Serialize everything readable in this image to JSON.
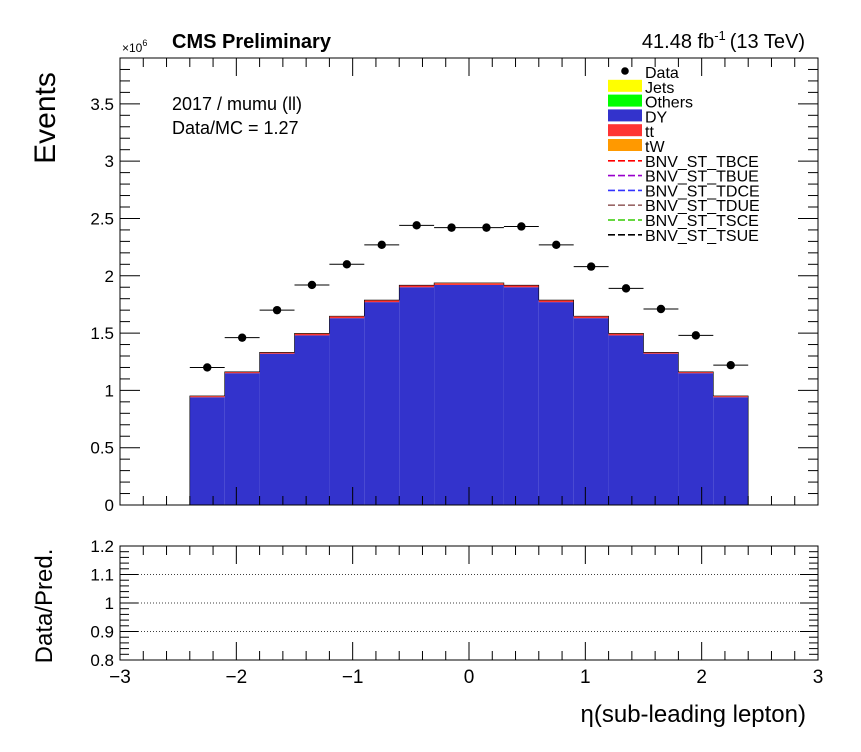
{
  "header": {
    "experiment": "CMS Preliminary",
    "lumi": "41.48 fb",
    "lumi_exp": "-1",
    "energy": "(13 TeV)",
    "scale_prefix": "×10",
    "scale_exp": "6"
  },
  "annotations": {
    "channel": "2017 / mumu (ll)",
    "ratio": "Data/MC = 1.27"
  },
  "colors": {
    "Jets": "#ffff00",
    "Others": "#00ff00",
    "DY": "#3333cc",
    "tt": "#ff3333",
    "tW": "#ff9900",
    "Data": "#000000",
    "BNV_ST_TBCE": "#ff0000",
    "BNV_ST_TBUE": "#9900cc",
    "BNV_ST_TDCE": "#3333ff",
    "BNV_ST_TDUE": "#996666",
    "BNV_ST_TSCE": "#33cc00",
    "BNV_ST_TSUE": "#000000"
  },
  "chart_data": [
    {
      "type": "bar",
      "stacked": true,
      "ylabel": "Events",
      "ylim": [
        0,
        3.9
      ],
      "y_scale_factor": "1e6",
      "xlim": [
        -3,
        3
      ],
      "yticks": [
        "0",
        "0.5",
        "1",
        "1.5",
        "2",
        "2.5",
        "3",
        "3.5"
      ],
      "bin_edges": [
        -3.0,
        -2.7,
        -2.4,
        -2.1,
        -1.8,
        -1.5,
        -1.2,
        -0.9,
        -0.6,
        -0.3,
        0.0,
        0.3,
        0.6,
        0.9,
        1.2,
        1.5,
        1.8,
        2.1,
        2.4,
        2.7,
        3.0
      ],
      "series": [
        {
          "name": "DY",
          "values": [
            0,
            0,
            0.94,
            1.15,
            1.32,
            1.48,
            1.63,
            1.77,
            1.9,
            1.92,
            1.92,
            1.9,
            1.77,
            1.63,
            1.48,
            1.32,
            1.15,
            0.94,
            0,
            0
          ]
        },
        {
          "name": "tt",
          "values": [
            0,
            0,
            0.01,
            0.01,
            0.01,
            0.015,
            0.015,
            0.015,
            0.015,
            0.015,
            0.015,
            0.015,
            0.015,
            0.015,
            0.015,
            0.01,
            0.01,
            0.01,
            0,
            0
          ]
        },
        {
          "name": "tW",
          "values": [
            0,
            0,
            0.002,
            0.002,
            0.002,
            0.003,
            0.003,
            0.003,
            0.003,
            0.003,
            0.003,
            0.003,
            0.003,
            0.003,
            0.003,
            0.002,
            0.002,
            0.002,
            0,
            0
          ]
        }
      ],
      "data_points": {
        "name": "Data",
        "x": [
          -2.25,
          -1.95,
          -1.65,
          -1.35,
          -1.05,
          -0.75,
          -0.45,
          -0.15,
          0.15,
          0.45,
          0.75,
          1.05,
          1.35,
          1.65,
          1.95,
          2.25
        ],
        "y": [
          1.2,
          1.46,
          1.7,
          1.92,
          2.1,
          2.27,
          2.44,
          2.42,
          2.42,
          2.43,
          2.27,
          2.08,
          1.89,
          1.71,
          1.48,
          1.22
        ]
      },
      "legend": {
        "placement": "top-right",
        "entries": [
          "Data",
          "Jets",
          "Others",
          "DY",
          "tt",
          "tW",
          "BNV_ST_TBCE",
          "BNV_ST_TBUE",
          "BNV_ST_TDCE",
          "BNV_ST_TDUE",
          "BNV_ST_TSCE",
          "BNV_ST_TSUE"
        ]
      }
    },
    {
      "type": "line",
      "ylabel": "Data/Pred.",
      "xlabel": "η(sub-leading lepton)",
      "ylim": [
        0.8,
        1.2
      ],
      "xlim": [
        -3,
        3
      ],
      "yticks": [
        "0.8",
        "0.9",
        "1",
        "1.1",
        "1.2"
      ],
      "xticks": [
        "−3",
        "−2",
        "−1",
        "0",
        "1",
        "2",
        "3"
      ],
      "reference_lines": [
        0.9,
        1.0,
        1.1
      ]
    }
  ]
}
